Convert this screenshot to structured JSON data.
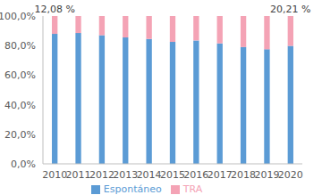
{
  "chart_data": {
    "type": "bar",
    "stacked": true,
    "legend": "bottom",
    "grid": false,
    "categories": [
      "2010",
      "2011",
      "2012",
      "2013",
      "2014",
      "2015",
      "2016",
      "2017",
      "2018",
      "2019",
      "2020"
    ],
    "series": [
      {
        "name": "Espontáneo",
        "color": "#5b9bd5",
        "values": [
          87.92,
          88.5,
          87,
          85.5,
          84.5,
          82.5,
          83.5,
          81.5,
          79,
          77.5,
          79.79
        ]
      },
      {
        "name": "TRA",
        "color": "#f4a3b5",
        "data_labels": true,
        "values": [
          12.08,
          11.5,
          13,
          14.5,
          15.5,
          17.5,
          16.5,
          18.5,
          21,
          22.5,
          20.21
        ],
        "value_labels": [
          "12,08 %",
          null,
          null,
          null,
          null,
          null,
          null,
          null,
          null,
          null,
          "20,21 %"
        ]
      }
    ],
    "ylim": [
      0,
      100
    ],
    "yticks": [
      {
        "value": 0,
        "label": "0,0%"
      },
      {
        "value": 20,
        "label": "20,0%"
      },
      {
        "value": 40,
        "label": "40,0%"
      },
      {
        "value": 60,
        "label": "60,0%"
      },
      {
        "value": 80,
        "label": "80,0%"
      },
      {
        "value": 100,
        "label": "100,0%"
      }
    ]
  }
}
